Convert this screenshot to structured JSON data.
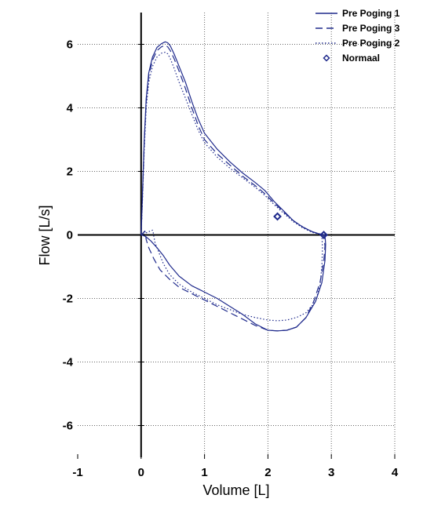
{
  "chart_data": {
    "type": "line",
    "xlabel": "Volume [L]",
    "ylabel": "Flow [L/s]",
    "xlim": [
      -1,
      4
    ],
    "ylim": [
      -7,
      7
    ],
    "x_ticks": [
      -1,
      0,
      1,
      2,
      3,
      4
    ],
    "y_ticks": [
      -6,
      -4,
      -2,
      0,
      2,
      4,
      6
    ],
    "grid": true,
    "legend_position": "top-right",
    "colors": {
      "series": "#1f2a8c",
      "axis": "#000000",
      "grid": "#666666"
    },
    "series": [
      {
        "name": "Pre Poging 1",
        "style": "solid",
        "x": [
          0.0,
          0.02,
          0.05,
          0.08,
          0.12,
          0.18,
          0.25,
          0.32,
          0.38,
          0.42,
          0.46,
          0.52,
          0.6,
          0.7,
          0.8,
          0.9,
          1.0,
          1.2,
          1.4,
          1.6,
          1.8,
          1.95,
          2.1,
          2.25,
          2.4,
          2.55,
          2.7,
          2.8,
          2.9,
          2.91,
          2.9,
          2.85,
          2.75,
          2.6,
          2.45,
          2.3,
          2.15,
          2.0,
          1.8,
          1.6,
          1.4,
          1.2,
          1.0,
          0.8,
          0.6,
          0.45,
          0.35,
          0.25,
          0.15,
          0.07,
          0.02,
          0.0
        ],
        "y": [
          0.0,
          1.2,
          3.0,
          4.3,
          5.1,
          5.6,
          5.9,
          6.02,
          6.08,
          6.05,
          5.95,
          5.7,
          5.3,
          4.8,
          4.2,
          3.65,
          3.2,
          2.7,
          2.3,
          1.95,
          1.65,
          1.4,
          1.05,
          0.75,
          0.45,
          0.25,
          0.1,
          0.04,
          0.0,
          -0.3,
          -0.8,
          -1.5,
          -2.1,
          -2.6,
          -2.9,
          -3.0,
          -3.02,
          -3.0,
          -2.8,
          -2.5,
          -2.25,
          -2.0,
          -1.8,
          -1.6,
          -1.3,
          -0.95,
          -0.65,
          -0.4,
          -0.18,
          -0.05,
          -0.01,
          0.0
        ]
      },
      {
        "name": "Pre Poging 3",
        "style": "dashed",
        "x": [
          0.0,
          0.02,
          0.05,
          0.08,
          0.12,
          0.18,
          0.25,
          0.32,
          0.38,
          0.42,
          0.46,
          0.52,
          0.6,
          0.7,
          0.8,
          0.9,
          1.0,
          1.2,
          1.4,
          1.6,
          1.8,
          1.95,
          2.1,
          2.25,
          2.4,
          2.55,
          2.7,
          2.8,
          2.88,
          2.9,
          2.88,
          2.82,
          2.72,
          2.6,
          2.45,
          2.3,
          2.15,
          2.0,
          1.8,
          1.6,
          1.4,
          1.2,
          1.0,
          0.8,
          0.6,
          0.45,
          0.3,
          0.2,
          0.12,
          0.08,
          0.07,
          0.06,
          0.0
        ],
        "y": [
          0.0,
          1.1,
          2.9,
          4.2,
          5.0,
          5.5,
          5.8,
          5.92,
          5.97,
          5.92,
          5.8,
          5.55,
          5.15,
          4.6,
          4.0,
          3.45,
          3.0,
          2.55,
          2.2,
          1.85,
          1.55,
          1.3,
          1.0,
          0.72,
          0.45,
          0.25,
          0.1,
          0.04,
          0.0,
          -0.35,
          -0.85,
          -1.5,
          -2.1,
          -2.6,
          -2.9,
          -3.0,
          -3.02,
          -3.0,
          -2.85,
          -2.65,
          -2.45,
          -2.25,
          -2.05,
          -1.85,
          -1.65,
          -1.4,
          -1.1,
          -0.75,
          -0.4,
          -0.15,
          0.0,
          0.12,
          0.0
        ]
      },
      {
        "name": "Pre Poging 2",
        "style": "dotted",
        "x": [
          0.0,
          0.02,
          0.05,
          0.08,
          0.12,
          0.18,
          0.25,
          0.32,
          0.38,
          0.42,
          0.46,
          0.52,
          0.6,
          0.7,
          0.8,
          0.9,
          1.0,
          1.2,
          1.4,
          1.6,
          1.8,
          1.95,
          2.1,
          2.25,
          2.4,
          2.55,
          2.7,
          2.8,
          2.85,
          2.86,
          2.85,
          2.82,
          2.75,
          2.6,
          2.45,
          2.3,
          2.15,
          2.0,
          1.8,
          1.6,
          1.4,
          1.2,
          1.0,
          0.8,
          0.6,
          0.45,
          0.35,
          0.28,
          0.22,
          0.2,
          0.19,
          0.18,
          0.0
        ],
        "y": [
          0.0,
          1.0,
          2.7,
          4.0,
          4.8,
          5.3,
          5.6,
          5.72,
          5.75,
          5.7,
          5.55,
          5.25,
          4.8,
          4.3,
          3.8,
          3.3,
          2.9,
          2.45,
          2.1,
          1.8,
          1.5,
          1.25,
          0.95,
          0.68,
          0.42,
          0.22,
          0.08,
          0.03,
          0.0,
          -0.4,
          -1.0,
          -1.6,
          -2.1,
          -2.45,
          -2.6,
          -2.68,
          -2.7,
          -2.68,
          -2.6,
          -2.5,
          -2.35,
          -2.2,
          -2.0,
          -1.8,
          -1.55,
          -1.25,
          -0.9,
          -0.55,
          -0.25,
          -0.05,
          0.08,
          0.15,
          0.0
        ]
      },
      {
        "name": "Normaal",
        "style": "marker-diamond",
        "x": [
          2.15,
          2.88
        ],
        "y": [
          0.58,
          0.0
        ]
      }
    ]
  }
}
